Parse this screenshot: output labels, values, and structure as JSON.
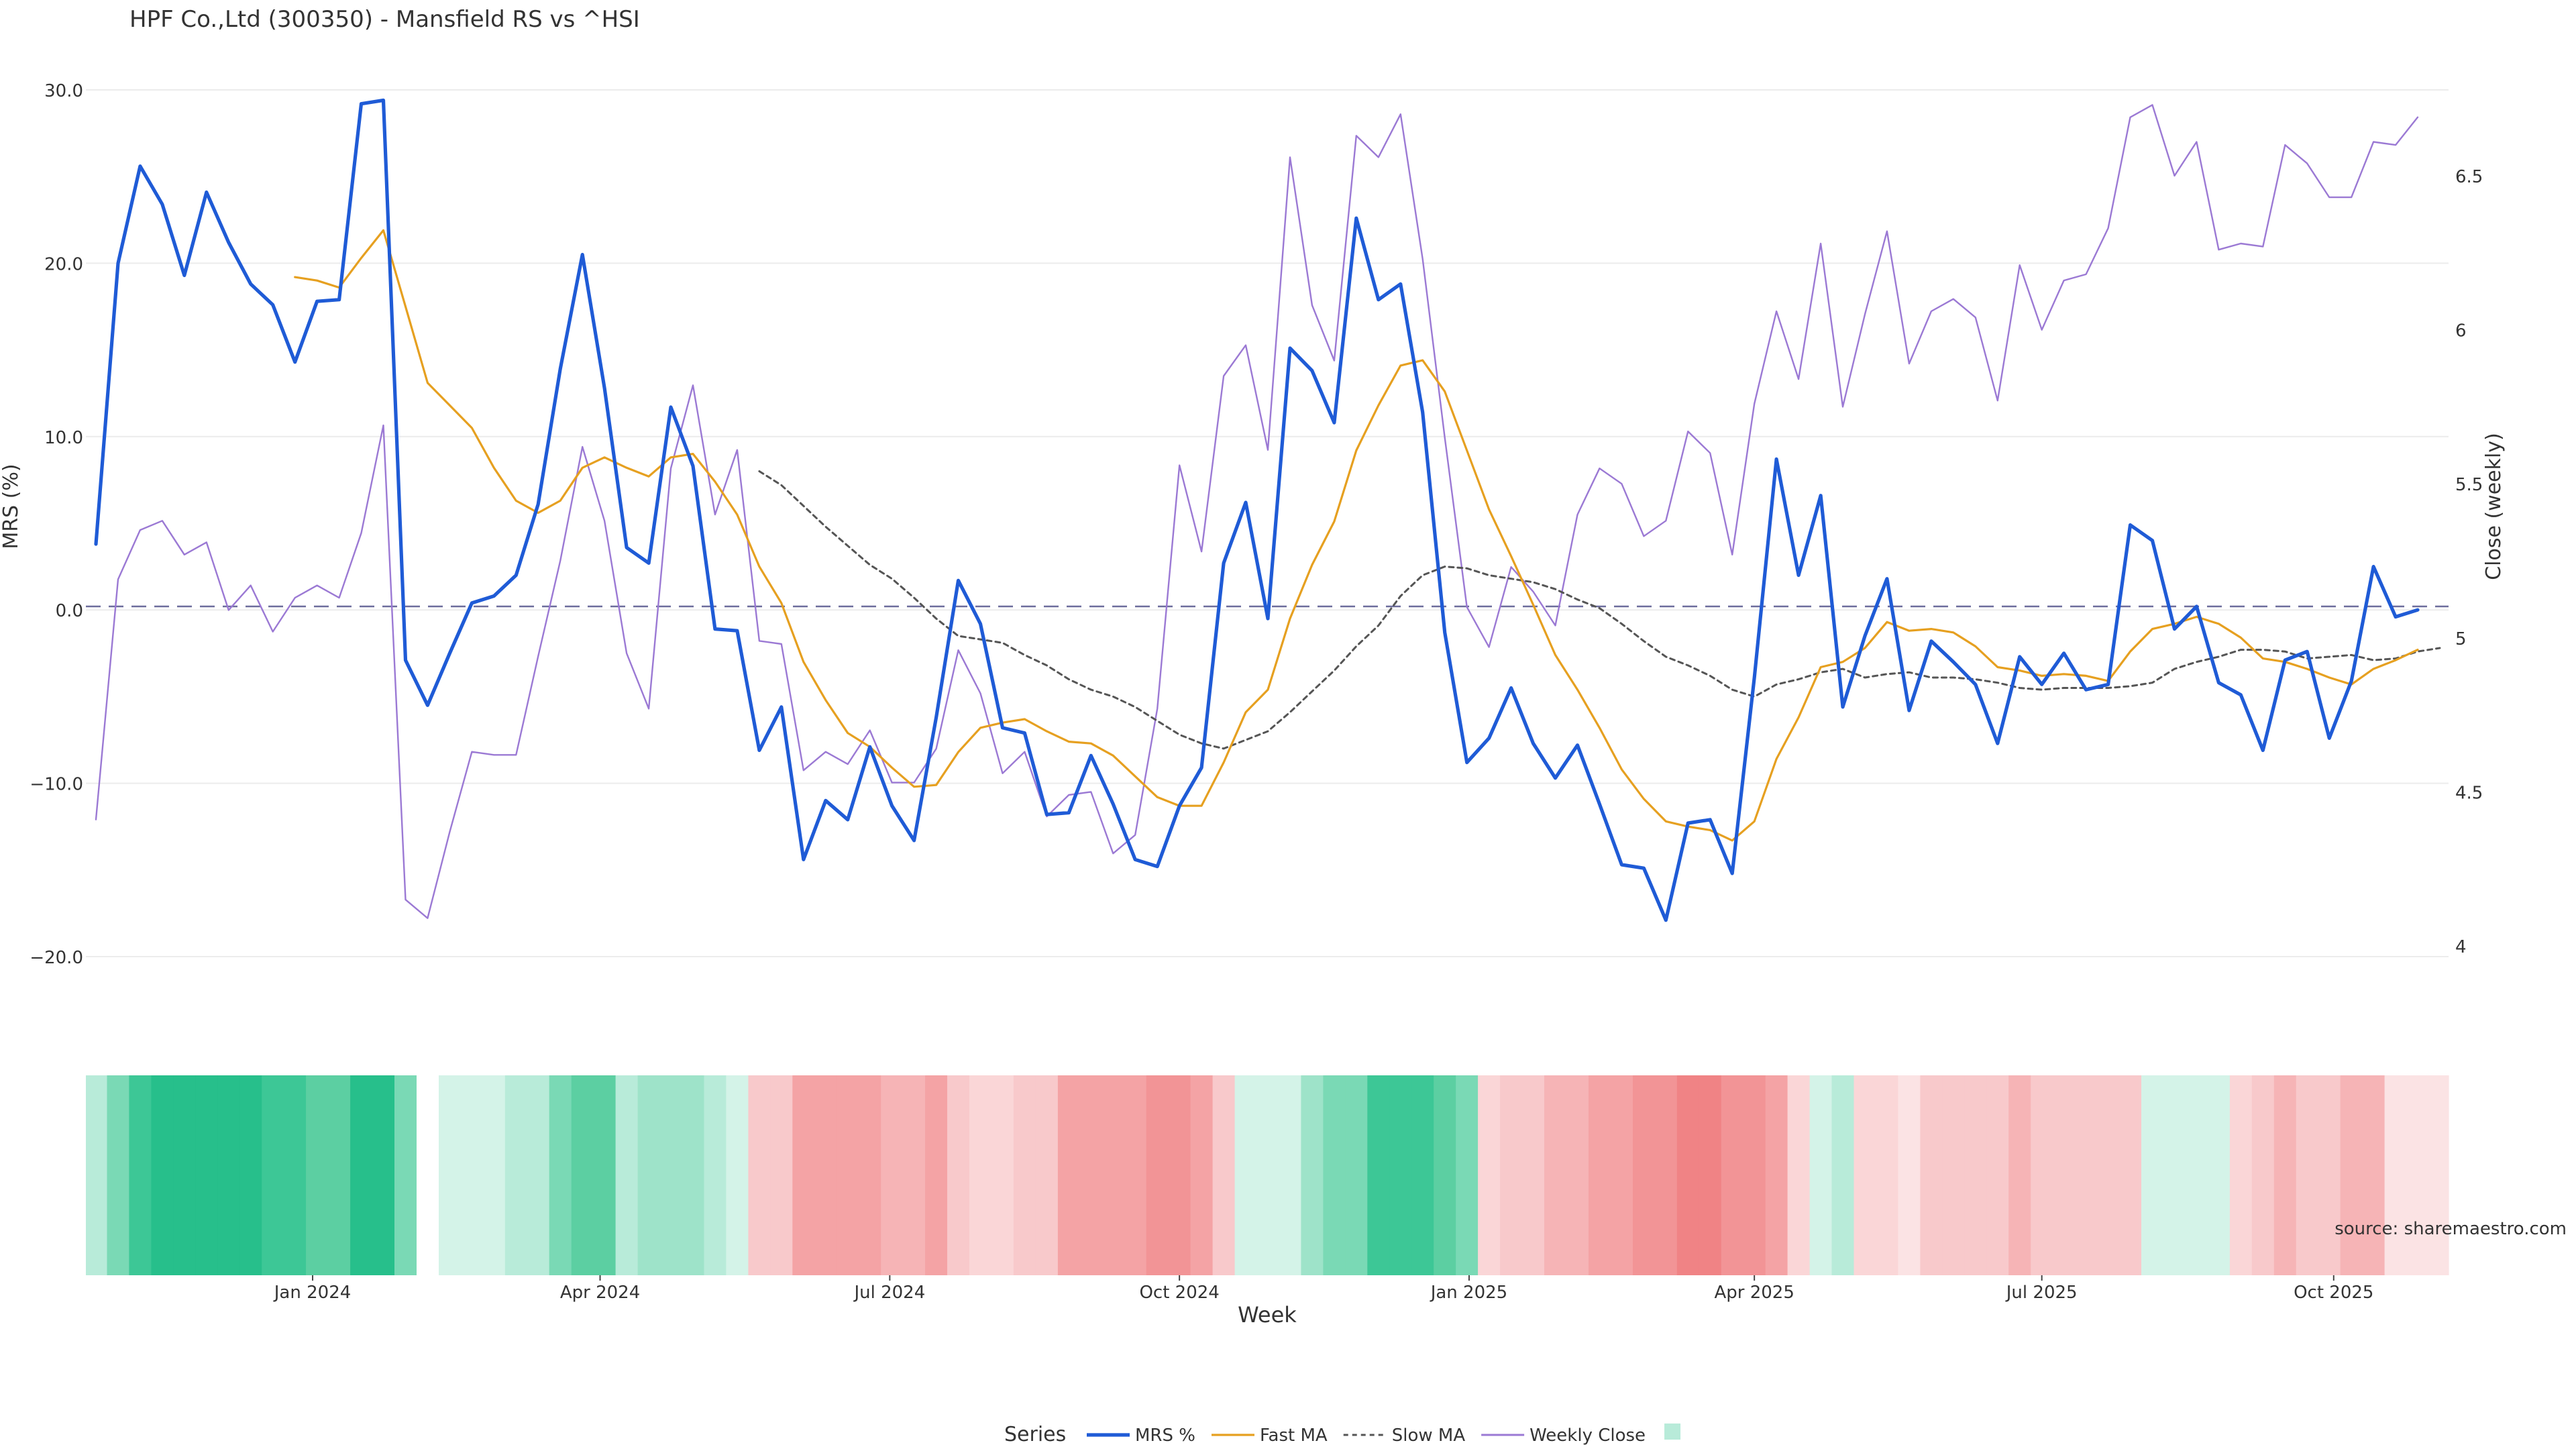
{
  "chart_data": {
    "type": "line",
    "title": "HPF Co.,Ltd (300350) - Mansfield RS vs ^HSI",
    "xlabel": "Week",
    "ylabel_left": "MRS (%)",
    "ylabel_right": "Close (weekly)",
    "ylim_left": [
      -23,
      30.5
    ],
    "ylim_right": [
      3.85,
      6.75
    ],
    "yticks_left": [
      "30.0",
      "20.0",
      "10.0",
      "0.0",
      "−10.0",
      "−20.0"
    ],
    "yticks_left_values": [
      30,
      20,
      10,
      0,
      -10,
      -20
    ],
    "yticks_right": [
      "6.5",
      "6",
      "5.5",
      "5",
      "4.5",
      "4"
    ],
    "yticks_right_values": [
      6.5,
      6,
      5.5,
      5,
      4.5,
      4
    ],
    "xticks": [
      {
        "label": "Jan 2024",
        "week": 9.8
      },
      {
        "label": "Apr 2024",
        "week": 22.8
      },
      {
        "label": "Jul 2024",
        "week": 35.9
      },
      {
        "label": "Oct 2024",
        "week": 49.0
      },
      {
        "label": "Jan 2025",
        "week": 62.1
      },
      {
        "label": "Apr 2025",
        "week": 75.0
      },
      {
        "label": "Jul 2025",
        "week": 88.0
      },
      {
        "label": "Oct 2025",
        "week": 101.2
      }
    ],
    "week_count": 107,
    "zero_line": 0,
    "source": "source: sharemaestro.com",
    "legend_title": "Series",
    "series": [
      {
        "name": "MRS %",
        "color": "#1f5bd6",
        "style": "solid-thick",
        "axis": "left",
        "start": 0,
        "values": [
          3.8,
          20.0,
          25.6,
          23.4,
          19.3,
          24.1,
          21.2,
          18.8,
          17.6,
          14.3,
          17.8,
          17.9,
          29.2,
          29.4,
          -2.9,
          -5.5,
          -2.5,
          0.4,
          0.8,
          2.0,
          6.1,
          13.9,
          20.5,
          12.8,
          3.6,
          2.7,
          11.7,
          8.3,
          -1.1,
          -1.2,
          -8.1,
          -5.6,
          -14.4,
          -11.0,
          -12.1,
          -7.9,
          -11.3,
          -13.3,
          -6.2,
          1.7,
          -0.8,
          -6.8,
          -7.1,
          -11.8,
          -11.7,
          -8.4,
          -11.2,
          -14.4,
          -14.8,
          -11.3,
          -9.1,
          2.7,
          6.2,
          -0.5,
          15.1,
          13.8,
          10.8,
          22.6,
          17.9,
          18.8,
          11.4,
          -1.3,
          -8.8,
          -7.4,
          -4.5,
          -7.7,
          -9.7,
          -7.8,
          -11.2,
          -14.7,
          -14.9,
          -17.9,
          -12.3,
          -12.1,
          -15.2,
          -3.9,
          8.7,
          2.0,
          6.6,
          -5.6,
          -1.5,
          1.8,
          -5.8,
          -1.8,
          -3.0,
          -4.3,
          -7.7,
          -2.7,
          -4.3,
          -2.5,
          -4.6,
          -4.3,
          4.9,
          4.0,
          -1.1,
          0.2,
          -4.2,
          -4.9,
          -8.1,
          -2.9,
          -2.4,
          -7.4,
          -4.1,
          2.5,
          -0.4,
          0.0
        ]
      },
      {
        "name": "Fast MA",
        "color": "#e6a020",
        "style": "solid",
        "axis": "left",
        "start": 9,
        "values": [
          19.2,
          19.0,
          18.6,
          20.3,
          21.9,
          17.5,
          13.1,
          11.8,
          10.5,
          8.2,
          6.3,
          5.6,
          6.3,
          8.2,
          8.8,
          8.2,
          7.7,
          8.8,
          9.0,
          7.4,
          5.5,
          2.5,
          0.4,
          -3.0,
          -5.2,
          -7.1,
          -7.9,
          -9.1,
          -10.2,
          -10.1,
          -8.2,
          -6.8,
          -6.5,
          -6.3,
          -7.0,
          -7.6,
          -7.7,
          -8.4,
          -9.6,
          -10.8,
          -11.3,
          -11.3,
          -8.8,
          -5.9,
          -4.6,
          -0.5,
          2.6,
          5.1,
          9.2,
          11.8,
          14.1,
          14.4,
          12.6,
          9.2,
          5.8,
          3.1,
          0.3,
          -2.6,
          -4.6,
          -6.8,
          -9.2,
          -10.9,
          -12.2,
          -12.5,
          -12.7,
          -13.3,
          -12.2,
          -8.6,
          -6.2,
          -3.3,
          -3.0,
          -2.2,
          -0.7,
          -1.2,
          -1.1,
          -1.3,
          -2.1,
          -3.3,
          -3.5,
          -3.8,
          -3.7,
          -3.8,
          -4.1,
          -2.4,
          -1.1,
          -0.8,
          -0.4,
          -0.8,
          -1.6,
          -2.8,
          -3.0,
          -3.4,
          -3.9,
          -4.3,
          -3.4,
          -2.9,
          -2.3
        ]
      },
      {
        "name": "Slow MA",
        "color": "#555555",
        "style": "dotted",
        "axis": "left",
        "start": 30,
        "values": [
          8.0,
          7.2,
          6.0,
          4.8,
          3.7,
          2.6,
          1.8,
          0.7,
          -0.5,
          -1.5,
          -1.7,
          -1.9,
          -2.6,
          -3.2,
          -4.0,
          -4.6,
          -5.0,
          -5.6,
          -6.4,
          -7.2,
          -7.7,
          -8.0,
          -7.5,
          -7.0,
          -5.9,
          -4.7,
          -3.5,
          -2.1,
          -0.9,
          0.8,
          2.0,
          2.5,
          2.4,
          2.0,
          1.8,
          1.6,
          1.2,
          0.6,
          0.1,
          -0.8,
          -1.8,
          -2.7,
          -3.2,
          -3.8,
          -4.6,
          -5.0,
          -4.3,
          -4.0,
          -3.6,
          -3.4,
          -3.9,
          -3.7,
          -3.6,
          -3.9,
          -3.9,
          -4.0,
          -4.2,
          -4.5,
          -4.6,
          -4.5,
          -4.5,
          -4.5,
          -4.4,
          -4.2,
          -3.4,
          -3.0,
          -2.7,
          -2.3,
          -2.3,
          -2.4,
          -2.8,
          -2.7,
          -2.6,
          -2.9,
          -2.8,
          -2.4,
          -2.2
        ]
      },
      {
        "name": "Weekly Close",
        "color": "#9b79d4",
        "style": "thin",
        "axis": "right",
        "start": 0,
        "values": [
          4.41,
          5.19,
          5.35,
          5.38,
          5.27,
          5.31,
          5.09,
          5.17,
          5.02,
          5.13,
          5.17,
          5.13,
          5.34,
          5.69,
          4.15,
          4.09,
          4.37,
          4.63,
          4.62,
          4.62,
          4.94,
          5.25,
          5.62,
          5.38,
          4.95,
          4.77,
          5.55,
          5.82,
          5.4,
          5.61,
          4.99,
          4.98,
          4.57,
          4.63,
          4.59,
          4.7,
          4.53,
          4.53,
          4.64,
          4.96,
          4.82,
          4.56,
          4.63,
          4.42,
          4.49,
          4.5,
          4.3,
          4.36,
          4.77,
          5.56,
          5.28,
          5.85,
          5.95,
          5.61,
          6.56,
          6.08,
          5.9,
          6.63,
          6.56,
          6.7,
          6.23,
          5.65,
          5.1,
          4.97,
          5.23,
          5.15,
          5.04,
          5.4,
          5.55,
          5.5,
          5.33,
          5.38,
          5.67,
          5.6,
          5.27,
          5.76,
          6.06,
          5.84,
          6.28,
          5.75,
          6.05,
          6.32,
          5.89,
          6.06,
          6.1,
          6.04,
          5.77,
          6.21,
          6.0,
          6.16,
          6.18,
          6.33,
          6.69,
          6.73,
          6.5,
          6.61,
          6.26,
          6.28,
          6.27,
          6.6,
          6.54,
          6.43,
          6.43,
          6.61,
          6.6,
          6.69
        ]
      }
    ],
    "legend_entries": [
      "MRS %",
      "Fast MA",
      "Slow MA",
      "Weekly Close"
    ],
    "heat_strip": {
      "gap_weeks": [
        14.5,
        15.5
      ],
      "colors": [
        "#b8ebd9",
        "#7ad9b5",
        "#3dc796",
        "#27bf8b",
        "#27bf8b",
        "#27bf8b",
        "#27bf8b",
        "#27bf8b",
        "#3dc796",
        "#3dc796",
        "#5ccfa2",
        "#5ccfa2",
        "#27bf8b",
        "#27bf8b",
        "#7ad9b5",
        "#b8ebd9",
        "#d4f3e8",
        "#d4f3e8",
        "#d4f3e8",
        "#b8ebd9",
        "#b8ebd9",
        "#7ad9b5",
        "#5ccfa2",
        "#5ccfa2",
        "#b8ebd9",
        "#9ee3c9",
        "#9ee3c9",
        "#9ee3c9",
        "#b8ebd9",
        "#d4f3e8",
        "#f8c9cb",
        "#f8c9cb",
        "#f4a3a5",
        "#f4a3a5",
        "#f4a3a5",
        "#f4a3a5",
        "#f6b4b6",
        "#f6b4b6",
        "#f4a3a5",
        "#f8c9cb",
        "#fad6d7",
        "#fad6d7",
        "#f8c9cb",
        "#f8c9cb",
        "#f4a3a5",
        "#f4a3a5",
        "#f4a3a5",
        "#f4a3a5",
        "#f29496",
        "#f29496",
        "#f4a3a5",
        "#f8c9cb",
        "#d4f3e8",
        "#d4f3e8",
        "#d4f3e8",
        "#9ee3c9",
        "#7ad9b5",
        "#7ad9b5",
        "#3dc796",
        "#3dc796",
        "#3dc796",
        "#5ccfa2",
        "#7ad9b5",
        "#fad6d7",
        "#f8c9cb",
        "#f8c9cb",
        "#f6b4b6",
        "#f6b4b6",
        "#f4a3a5",
        "#f4a3a5",
        "#f29496",
        "#f29496",
        "#f08385",
        "#f08385",
        "#f29496",
        "#f29496",
        "#f4a3a5",
        "#fad6d7",
        "#d4f3e8",
        "#b8ebd9",
        "#fad6d7",
        "#fad6d7",
        "#fbe3e4",
        "#f8c9cb",
        "#f8c9cb",
        "#f8c9cb",
        "#f8c9cb",
        "#f6b4b6",
        "#f8c9cb",
        "#f8c9cb",
        "#f8c9cb",
        "#f8c9cb",
        "#f8c9cb",
        "#d4f3e8",
        "#d4f3e8",
        "#d4f3e8",
        "#d4f3e8",
        "#fad6d7",
        "#f8c9cb",
        "#f6b4b6",
        "#f8c9cb",
        "#f8c9cb",
        "#f6b4b6",
        "#f6b4b6",
        "#fbe3e4",
        "#fbe3e4",
        "#fbe3e4"
      ]
    }
  }
}
